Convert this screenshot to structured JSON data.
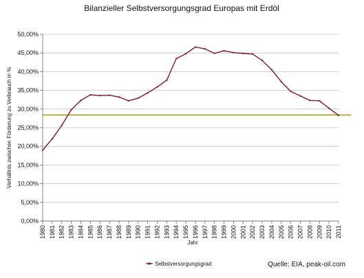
{
  "chart_data": {
    "type": "line",
    "title": "Bilanzieller Selbstversorgungsgrad Europas mit Erdöl",
    "xlabel": "Jahr",
    "ylabel": "Verhältnis zwischen Förderung zu Verbrauch in %",
    "x": [
      "1980",
      "1981",
      "1982",
      "1983",
      "1984",
      "1985",
      "1986",
      "1987",
      "1988",
      "1989",
      "1990",
      "1991",
      "1992",
      "1993",
      "1994",
      "1995",
      "1996",
      "1997",
      "1998",
      "1999",
      "2000",
      "2001",
      "2002",
      "2003",
      "2004",
      "2005",
      "2006",
      "2007",
      "2008",
      "2009",
      "2010",
      "2011"
    ],
    "y_ticks": [
      "0,00%",
      "5,00%",
      "10,00%",
      "15,00%",
      "20,00%",
      "25,00%",
      "30,00%",
      "35,00%",
      "40,00%",
      "45,00%",
      "50,00%"
    ],
    "ylim": [
      0,
      50
    ],
    "series": [
      {
        "name": "Selbstversorgungsgrad",
        "color": "#7b1631",
        "values": [
          19.0,
          22.0,
          25.6,
          29.8,
          32.3,
          33.8,
          33.6,
          33.7,
          33.2,
          32.2,
          32.9,
          34.3,
          35.9,
          37.7,
          43.5,
          44.8,
          46.6,
          46.1,
          44.9,
          45.6,
          45.1,
          44.9,
          44.7,
          43.0,
          40.5,
          37.3,
          34.7,
          33.5,
          32.3,
          32.2,
          30.2,
          28.3
        ]
      }
    ],
    "reference_line": {
      "value": 28.4,
      "color": "#9a9a00"
    },
    "grid": true,
    "grid_color": "#bdbdbd",
    "legend": {
      "position": "bottom-left",
      "label": "Selbstversorgungsgrad"
    },
    "source_text": "Quelle: EIA, peak-oil.com"
  }
}
